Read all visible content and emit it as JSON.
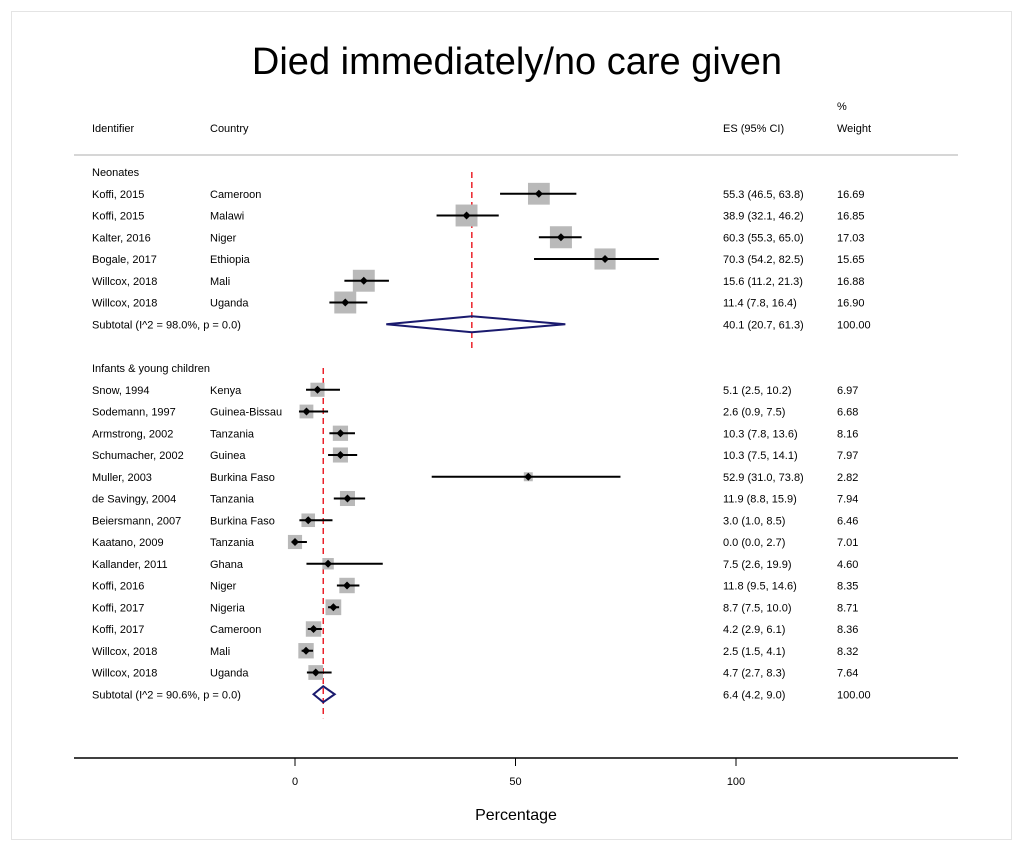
{
  "chart_data": {
    "type": "forest",
    "title": "Died immediately/no care given",
    "xlabel": "Percentage",
    "x_ticks": [
      0,
      50,
      100
    ],
    "xlim": [
      -50,
      150
    ],
    "headers": {
      "identifier": "Identifier",
      "country": "Country",
      "es": "ES (95% CI)",
      "weight_top": "%",
      "weight": "Weight"
    },
    "groups": [
      {
        "name": "Neonates",
        "studies": [
          {
            "id": "Koffi, 2015",
            "country": "Cameroon",
            "es": 55.3,
            "lo": 46.5,
            "hi": 63.8,
            "es_text": "55.3 (46.5, 63.8)",
            "weight": "16.69"
          },
          {
            "id": "Koffi, 2015",
            "country": "Malawi",
            "es": 38.9,
            "lo": 32.1,
            "hi": 46.2,
            "es_text": "38.9 (32.1, 46.2)",
            "weight": "16.85"
          },
          {
            "id": "Kalter, 2016",
            "country": "Niger",
            "es": 60.3,
            "lo": 55.3,
            "hi": 65.0,
            "es_text": "60.3 (55.3, 65.0)",
            "weight": "17.03"
          },
          {
            "id": "Bogale, 2017",
            "country": "Ethiopia",
            "es": 70.3,
            "lo": 54.2,
            "hi": 82.5,
            "es_text": "70.3 (54.2, 82.5)",
            "weight": "15.65"
          },
          {
            "id": "Willcox, 2018",
            "country": "Mali",
            "es": 15.6,
            "lo": 11.2,
            "hi": 21.3,
            "es_text": "15.6 (11.2, 21.3)",
            "weight": "16.88"
          },
          {
            "id": "Willcox, 2018",
            "country": "Uganda",
            "es": 11.4,
            "lo": 7.8,
            "hi": 16.4,
            "es_text": "11.4 (7.8, 16.4)",
            "weight": "16.90"
          }
        ],
        "subtotal": {
          "label": "Subtotal  (I^2 = 98.0%, p = 0.0)",
          "es": 40.1,
          "lo": 20.7,
          "hi": 61.3,
          "es_text": "40.1 (20.7, 61.3)",
          "weight": "100.00"
        }
      },
      {
        "name": "Infants & young children",
        "studies": [
          {
            "id": "Snow, 1994",
            "country": "Kenya",
            "es": 5.1,
            "lo": 2.5,
            "hi": 10.2,
            "es_text": "5.1 (2.5, 10.2)",
            "weight": "6.97"
          },
          {
            "id": "Sodemann, 1997",
            "country": "Guinea-Bissau",
            "es": 2.6,
            "lo": 0.9,
            "hi": 7.5,
            "es_text": "2.6 (0.9, 7.5)",
            "weight": "6.68"
          },
          {
            "id": "Armstrong, 2002",
            "country": "Tanzania",
            "es": 10.3,
            "lo": 7.8,
            "hi": 13.6,
            "es_text": "10.3 (7.8, 13.6)",
            "weight": "8.16"
          },
          {
            "id": "Schumacher, 2002",
            "country": "Guinea",
            "es": 10.3,
            "lo": 7.5,
            "hi": 14.1,
            "es_text": "10.3 (7.5, 14.1)",
            "weight": "7.97"
          },
          {
            "id": "Muller, 2003",
            "country": "Burkina Faso",
            "es": 52.9,
            "lo": 31.0,
            "hi": 73.8,
            "es_text": "52.9 (31.0, 73.8)",
            "weight": "2.82"
          },
          {
            "id": "de Savingy, 2004",
            "country": "Tanzania",
            "es": 11.9,
            "lo": 8.8,
            "hi": 15.9,
            "es_text": "11.9 (8.8, 15.9)",
            "weight": "7.94"
          },
          {
            "id": "Beiersmann, 2007",
            "country": "Burkina Faso",
            "es": 3.0,
            "lo": 1.0,
            "hi": 8.5,
            "es_text": "3.0 (1.0, 8.5)",
            "weight": "6.46"
          },
          {
            "id": "Kaatano, 2009",
            "country": "Tanzania",
            "es": 0.0,
            "lo": 0.0,
            "hi": 2.7,
            "es_text": "0.0 (0.0, 2.7)",
            "weight": "7.01"
          },
          {
            "id": "Kallander, 2011",
            "country": "Ghana",
            "es": 7.5,
            "lo": 2.6,
            "hi": 19.9,
            "es_text": "7.5 (2.6, 19.9)",
            "weight": "4.60"
          },
          {
            "id": "Koffi, 2016",
            "country": "Niger",
            "es": 11.8,
            "lo": 9.5,
            "hi": 14.6,
            "es_text": "11.8 (9.5, 14.6)",
            "weight": "8.35"
          },
          {
            "id": "Koffi, 2017",
            "country": "Nigeria",
            "es": 8.7,
            "lo": 7.5,
            "hi": 10.0,
            "es_text": "8.7 (7.5, 10.0)",
            "weight": "8.71"
          },
          {
            "id": "Koffi, 2017",
            "country": "Cameroon",
            "es": 4.2,
            "lo": 2.9,
            "hi": 6.1,
            "es_text": "4.2 (2.9, 6.1)",
            "weight": "8.36"
          },
          {
            "id": "Willcox, 2018",
            "country": "Mali",
            "es": 2.5,
            "lo": 1.5,
            "hi": 4.1,
            "es_text": "2.5 (1.5, 4.1)",
            "weight": "8.32"
          },
          {
            "id": "Willcox, 2018",
            "country": "Uganda",
            "es": 4.7,
            "lo": 2.7,
            "hi": 8.3,
            "es_text": "4.7 (2.7, 8.3)",
            "weight": "7.64"
          }
        ],
        "subtotal": {
          "label": "Subtotal  (I^2 = 90.6%, p = 0.0)",
          "es": 6.4,
          "lo": 4.2,
          "hi": 9.0,
          "es_text": "6.4 (4.2, 9.0)",
          "weight": "100.00"
        }
      }
    ],
    "colors": {
      "marker_box": "#b9b9b9",
      "point": "#000000",
      "diamond": "#1a1a6e",
      "pooled_line": "#e8000b",
      "divider": "#c8c8c8"
    }
  }
}
